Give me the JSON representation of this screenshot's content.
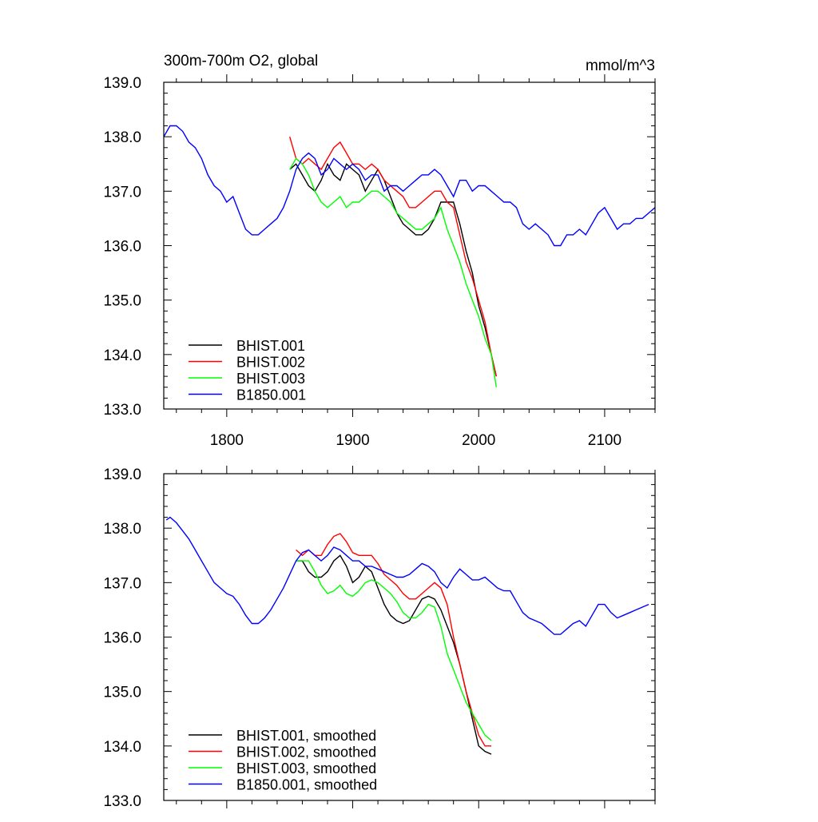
{
  "chart_data": [
    {
      "type": "line",
      "title": "300m-700m O2, global",
      "units": "mmol/m^3",
      "xlim": [
        1750,
        2140
      ],
      "ylim": [
        133.0,
        139.0
      ],
      "x_ticks": [
        1800,
        1900,
        2000,
        2100
      ],
      "x_tick_labels": [
        "1800",
        "1900",
        "2000",
        "2100"
      ],
      "y_ticks": [
        133.0,
        134.0,
        135.0,
        136.0,
        137.0,
        138.0,
        139.0
      ],
      "y_tick_labels": [
        "133.0",
        "134.0",
        "135.0",
        "136.0",
        "137.0",
        "138.0",
        "139.0"
      ],
      "legend_position": "bottom-left",
      "series": [
        {
          "name": "BHIST.001",
          "color": "#000000",
          "x": [
            1850,
            1855,
            1860,
            1865,
            1870,
            1875,
            1880,
            1885,
            1890,
            1895,
            1900,
            1905,
            1910,
            1915,
            1920,
            1925,
            1930,
            1935,
            1940,
            1945,
            1950,
            1955,
            1960,
            1965,
            1970,
            1975,
            1980,
            1985,
            1990,
            1995,
            2000,
            2005,
            2010,
            2014
          ],
          "y": [
            137.4,
            137.5,
            137.3,
            137.1,
            137.0,
            137.2,
            137.5,
            137.3,
            137.2,
            137.5,
            137.4,
            137.3,
            137.0,
            137.2,
            137.4,
            137.2,
            136.9,
            136.6,
            136.4,
            136.3,
            136.2,
            136.2,
            136.3,
            136.5,
            136.8,
            136.8,
            136.8,
            136.4,
            135.9,
            135.5,
            134.9,
            134.5,
            134.0,
            133.6
          ]
        },
        {
          "name": "BHIST.002",
          "color": "#ff0000",
          "x": [
            1850,
            1855,
            1860,
            1865,
            1870,
            1875,
            1880,
            1885,
            1890,
            1895,
            1900,
            1905,
            1910,
            1915,
            1920,
            1925,
            1930,
            1935,
            1940,
            1945,
            1950,
            1955,
            1960,
            1965,
            1970,
            1975,
            1980,
            1985,
            1990,
            1995,
            2000,
            2005,
            2010,
            2014
          ],
          "y": [
            138.0,
            137.6,
            137.5,
            137.6,
            137.5,
            137.4,
            137.6,
            137.8,
            137.9,
            137.7,
            137.5,
            137.5,
            137.4,
            137.5,
            137.4,
            137.2,
            137.1,
            137.0,
            136.9,
            136.7,
            136.7,
            136.8,
            136.9,
            137.0,
            137.0,
            136.8,
            136.7,
            136.2,
            135.7,
            135.4,
            135.0,
            134.6,
            134.0,
            133.6
          ]
        },
        {
          "name": "BHIST.003",
          "color": "#00ff00",
          "x": [
            1850,
            1855,
            1860,
            1865,
            1870,
            1875,
            1880,
            1885,
            1890,
            1895,
            1900,
            1905,
            1910,
            1915,
            1920,
            1925,
            1930,
            1935,
            1940,
            1945,
            1950,
            1955,
            1960,
            1965,
            1970,
            1975,
            1980,
            1985,
            1990,
            1995,
            2000,
            2005,
            2010,
            2014
          ],
          "y": [
            137.4,
            137.6,
            137.5,
            137.3,
            137.0,
            136.8,
            136.7,
            136.8,
            136.9,
            136.7,
            136.8,
            136.8,
            136.9,
            137.0,
            137.0,
            136.9,
            136.8,
            136.6,
            136.5,
            136.4,
            136.3,
            136.3,
            136.4,
            136.5,
            136.7,
            136.3,
            136.0,
            135.7,
            135.3,
            135.0,
            134.7,
            134.3,
            134.0,
            133.4
          ]
        },
        {
          "name": "B1850.001",
          "color": "#0000ff",
          "x": [
            1750,
            1755,
            1760,
            1765,
            1770,
            1775,
            1780,
            1785,
            1790,
            1795,
            1800,
            1805,
            1810,
            1815,
            1820,
            1825,
            1830,
            1835,
            1840,
            1845,
            1850,
            1855,
            1860,
            1865,
            1870,
            1875,
            1880,
            1885,
            1890,
            1895,
            1900,
            1905,
            1910,
            1915,
            1920,
            1925,
            1930,
            1935,
            1940,
            1945,
            1950,
            1955,
            1960,
            1965,
            1970,
            1975,
            1980,
            1985,
            1990,
            1995,
            2000,
            2005,
            2010,
            2015,
            2020,
            2025,
            2030,
            2035,
            2040,
            2045,
            2050,
            2055,
            2060,
            2065,
            2070,
            2075,
            2080,
            2085,
            2090,
            2095,
            2100,
            2105,
            2110,
            2115,
            2120,
            2125,
            2130,
            2135,
            2140
          ],
          "y": [
            138.0,
            138.2,
            138.2,
            138.1,
            137.9,
            137.8,
            137.6,
            137.3,
            137.1,
            137.0,
            136.8,
            136.9,
            136.6,
            136.3,
            136.2,
            136.2,
            136.3,
            136.4,
            136.5,
            136.7,
            137.0,
            137.4,
            137.6,
            137.7,
            137.6,
            137.3,
            137.4,
            137.6,
            137.5,
            137.4,
            137.5,
            137.4,
            137.2,
            137.3,
            137.3,
            137.0,
            137.1,
            137.1,
            137.0,
            137.1,
            137.2,
            137.3,
            137.3,
            137.4,
            137.3,
            137.1,
            136.9,
            137.2,
            137.2,
            137.0,
            137.1,
            137.1,
            137.0,
            136.9,
            136.8,
            136.8,
            136.7,
            136.4,
            136.3,
            136.4,
            136.3,
            136.2,
            136.0,
            136.0,
            136.2,
            136.2,
            136.3,
            136.2,
            136.4,
            136.6,
            136.7,
            136.5,
            136.3,
            136.4,
            136.4,
            136.5,
            136.5,
            136.6,
            136.7
          ]
        }
      ]
    },
    {
      "type": "line",
      "xlim": [
        1750,
        2140
      ],
      "ylim": [
        133.0,
        139.0
      ],
      "x_ticks": [
        1800,
        1900,
        2000,
        2100
      ],
      "y_ticks": [
        133.0,
        134.0,
        135.0,
        136.0,
        137.0,
        138.0,
        139.0
      ],
      "y_tick_labels": [
        "133.0",
        "134.0",
        "135.0",
        "136.0",
        "137.0",
        "138.0",
        "139.0"
      ],
      "legend_position": "bottom-left",
      "series": [
        {
          "name": "BHIST.001, smoothed",
          "color": "#000000",
          "x": [
            1855,
            1860,
            1865,
            1870,
            1875,
            1880,
            1885,
            1890,
            1895,
            1900,
            1905,
            1910,
            1915,
            1920,
            1925,
            1930,
            1935,
            1940,
            1945,
            1950,
            1955,
            1960,
            1965,
            1970,
            1975,
            1980,
            1985,
            1990,
            1995,
            2000,
            2005,
            2010
          ],
          "y": [
            137.4,
            137.4,
            137.2,
            137.1,
            137.1,
            137.2,
            137.4,
            137.5,
            137.3,
            137.0,
            137.1,
            137.3,
            137.2,
            136.9,
            136.6,
            136.4,
            136.3,
            136.25,
            136.3,
            136.5,
            136.7,
            136.75,
            136.7,
            136.5,
            136.2,
            135.9,
            135.5,
            135.0,
            134.5,
            134.0,
            133.9,
            133.85
          ]
        },
        {
          "name": "BHIST.002, smoothed",
          "color": "#ff0000",
          "x": [
            1855,
            1860,
            1865,
            1870,
            1875,
            1880,
            1885,
            1890,
            1895,
            1900,
            1905,
            1910,
            1915,
            1920,
            1925,
            1930,
            1935,
            1940,
            1945,
            1950,
            1955,
            1960,
            1965,
            1970,
            1975,
            1980,
            1985,
            1990,
            1995,
            2000,
            2005,
            2010
          ],
          "y": [
            137.6,
            137.5,
            137.6,
            137.5,
            137.5,
            137.7,
            137.85,
            137.9,
            137.75,
            137.55,
            137.5,
            137.5,
            137.5,
            137.35,
            137.15,
            137.05,
            136.95,
            136.8,
            136.7,
            136.7,
            136.8,
            136.9,
            137.0,
            136.9,
            136.6,
            136.0,
            135.5,
            135.0,
            134.6,
            134.2,
            134.0,
            134.0
          ]
        },
        {
          "name": "BHIST.003, smoothed",
          "color": "#00ff00",
          "x": [
            1855,
            1860,
            1865,
            1870,
            1875,
            1880,
            1885,
            1890,
            1895,
            1900,
            1905,
            1910,
            1915,
            1920,
            1925,
            1930,
            1935,
            1940,
            1945,
            1950,
            1955,
            1960,
            1965,
            1970,
            1975,
            1980,
            1985,
            1990,
            1995,
            2000,
            2005,
            2010
          ],
          "y": [
            137.4,
            137.4,
            137.4,
            137.2,
            136.95,
            136.8,
            136.85,
            136.95,
            136.8,
            136.75,
            136.85,
            137.0,
            137.05,
            137.0,
            136.9,
            136.8,
            136.65,
            136.45,
            136.35,
            136.35,
            136.45,
            136.6,
            136.55,
            136.2,
            135.7,
            135.4,
            135.1,
            134.8,
            134.6,
            134.4,
            134.2,
            134.1
          ]
        },
        {
          "name": "B1850.001, smoothed",
          "color": "#0000ff",
          "x": [
            1752,
            1755,
            1760,
            1765,
            1770,
            1775,
            1780,
            1785,
            1790,
            1795,
            1800,
            1805,
            1810,
            1815,
            1820,
            1825,
            1830,
            1835,
            1840,
            1845,
            1850,
            1855,
            1860,
            1865,
            1870,
            1875,
            1880,
            1885,
            1890,
            1895,
            1900,
            1905,
            1910,
            1915,
            1920,
            1925,
            1930,
            1935,
            1940,
            1945,
            1950,
            1955,
            1960,
            1965,
            1970,
            1975,
            1980,
            1985,
            1990,
            1995,
            2000,
            2005,
            2010,
            2015,
            2020,
            2025,
            2030,
            2035,
            2040,
            2045,
            2050,
            2055,
            2060,
            2065,
            2070,
            2075,
            2080,
            2085,
            2090,
            2095,
            2100,
            2105,
            2110,
            2115,
            2120,
            2125,
            2130,
            2135
          ],
          "y": [
            138.15,
            138.2,
            138.1,
            137.95,
            137.8,
            137.6,
            137.4,
            137.2,
            137.0,
            136.9,
            136.8,
            136.75,
            136.6,
            136.4,
            136.25,
            136.25,
            136.35,
            136.5,
            136.7,
            136.9,
            137.15,
            137.4,
            137.55,
            137.6,
            137.5,
            137.4,
            137.5,
            137.65,
            137.6,
            137.5,
            137.4,
            137.4,
            137.3,
            137.3,
            137.25,
            137.2,
            137.15,
            137.1,
            137.1,
            137.15,
            137.25,
            137.35,
            137.3,
            137.2,
            137.0,
            136.9,
            137.1,
            137.25,
            137.15,
            137.05,
            137.05,
            137.1,
            137.0,
            136.9,
            136.85,
            136.85,
            136.65,
            136.45,
            136.35,
            136.3,
            136.25,
            136.15,
            136.05,
            136.05,
            136.15,
            136.25,
            136.3,
            136.2,
            136.4,
            136.6,
            136.6,
            136.45,
            136.35,
            136.4,
            136.45,
            136.5,
            136.55,
            136.6
          ]
        }
      ]
    }
  ]
}
